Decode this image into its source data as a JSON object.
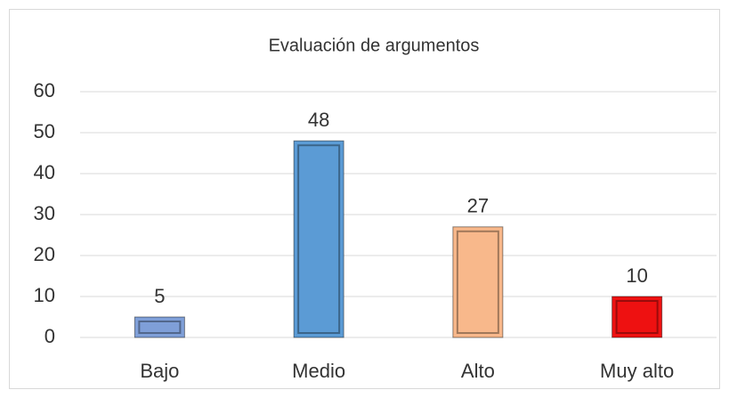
{
  "chart_data": {
    "type": "bar",
    "title": "Evaluación de argumentos",
    "categories": [
      "Bajo",
      "Medio",
      "Alto",
      "Muy alto"
    ],
    "values": [
      5,
      48,
      27,
      10
    ],
    "colors": [
      "#7f9fd8",
      "#5b9bd5",
      "#f8b88b",
      "#ee1111"
    ],
    "ylim": [
      0,
      60
    ],
    "yticks": [
      0,
      10,
      20,
      30,
      40,
      50,
      60
    ],
    "grid": true
  }
}
